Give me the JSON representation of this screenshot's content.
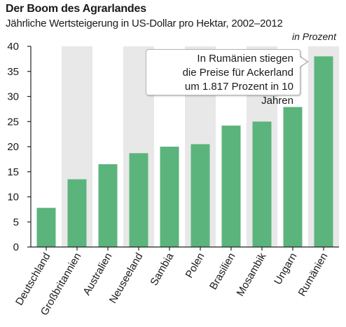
{
  "header": {
    "title": "Der Boom des Agrarlandes",
    "subtitle": "Jährliche Wertsteigerung in US-Dollar pro Hektar, 2002–2012",
    "unit": "in Prozent"
  },
  "annotation": {
    "lines": [
      "In Rumänien stiegen",
      "die Preise für Ackerland",
      "um 1.817 Prozent in 10 Jahren"
    ]
  },
  "colors": {
    "bar": "#5bb47c",
    "band": "#e8e8e8",
    "axis": "#222222",
    "text": "#1a1a1a"
  },
  "chart_data": {
    "type": "bar",
    "title": "Der Boom des Agrarlandes",
    "subtitle": "Jährliche Wertsteigerung in US-Dollar pro Hektar, 2002–2012",
    "ylabel": "in Prozent",
    "xlabel": "",
    "categories": [
      "Deutschland",
      "Großbritannien",
      "Australien",
      "Neuseeland",
      "Sambia",
      "Polen",
      "Brasilien",
      "Mosambik",
      "Ungarn",
      "Rumänien"
    ],
    "values": [
      7.8,
      13.5,
      16.5,
      18.7,
      20.0,
      20.5,
      24.2,
      25.0,
      27.9,
      38.0
    ],
    "ylim": [
      0,
      40
    ],
    "yticks": [
      0,
      5,
      10,
      15,
      20,
      25,
      30,
      35,
      40
    ],
    "grid": "alternating vertical bands",
    "legend": "none"
  }
}
